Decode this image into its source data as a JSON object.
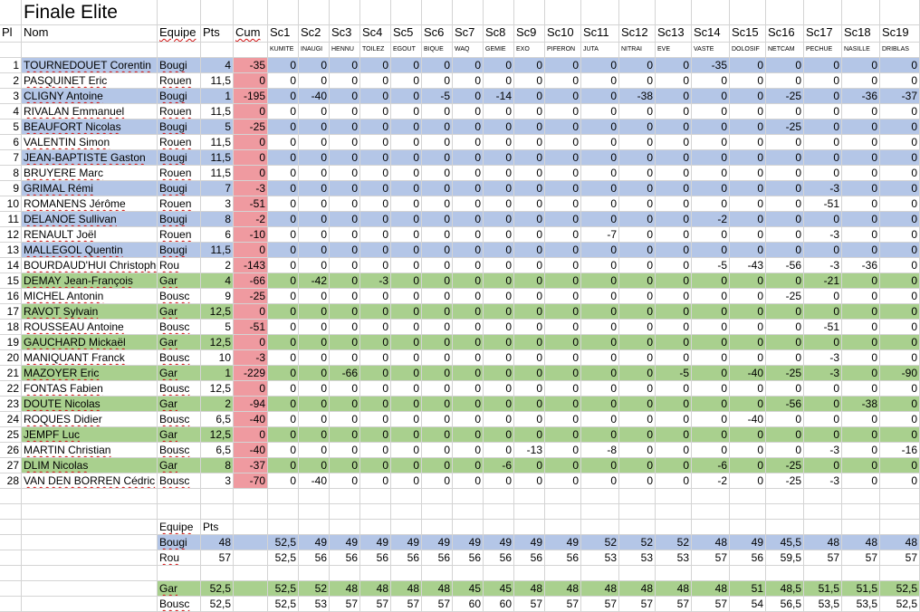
{
  "sheet": {
    "title": "Finale Elite",
    "headers": {
      "pl": "Pl",
      "nom": "Nom",
      "equipe": "Equipe",
      "pts": "Pts",
      "cum": "Cum",
      "sc": [
        "Sc1",
        "Sc2",
        "Sc3",
        "Sc4",
        "Sc5",
        "Sc6",
        "Sc7",
        "Sc8",
        "Sc9",
        "Sc10",
        "Sc11",
        "Sc12",
        "Sc13",
        "Sc14",
        "Sc15",
        "Sc16",
        "Sc17",
        "Sc18",
        "Sc19"
      ]
    },
    "subheaders": [
      "KUMITE",
      "INAUGI",
      "HENNU",
      "TOILEZ",
      "EGOUT",
      "BIQUE",
      "WAQ",
      "GEMIE",
      "EXO",
      "PIFERON",
      "JUTA",
      "NITRAI",
      "EVE",
      "VASTE",
      "DOLOSIF",
      "NETCAM",
      "PECHUE",
      "NASILLE",
      "DRIBLAS"
    ],
    "colors": {
      "blue": "#b4c6e7",
      "green": "#a9d08e",
      "red": "#ef9aa0"
    },
    "rows": [
      {
        "pl": "1",
        "nom": "TOURNEDOUET Corentin",
        "equipe": "Bougi",
        "pts": "4",
        "cum": "-35",
        "sc": [
          "0",
          "0",
          "0",
          "0",
          "0",
          "0",
          "0",
          "0",
          "0",
          "0",
          "0",
          "0",
          "0",
          "-35",
          "0",
          "0",
          "0",
          "0",
          "0"
        ]
      },
      {
        "pl": "2",
        "nom": "PASQUINET Eric",
        "equipe": "Rouen",
        "pts": "11,5",
        "cum": "0",
        "sc": [
          "0",
          "0",
          "0",
          "0",
          "0",
          "0",
          "0",
          "0",
          "0",
          "0",
          "0",
          "0",
          "0",
          "0",
          "0",
          "0",
          "0",
          "0",
          "0"
        ]
      },
      {
        "pl": "3",
        "nom": "CLIGNY Antoine",
        "equipe": "Bougi",
        "pts": "1",
        "cum": "-195",
        "sc": [
          "0",
          "-40",
          "0",
          "0",
          "0",
          "-5",
          "0",
          "-14",
          "0",
          "0",
          "0",
          "-38",
          "0",
          "0",
          "0",
          "-25",
          "0",
          "-36",
          "-37"
        ]
      },
      {
        "pl": "4",
        "nom": "RIVALAN Emmanuel",
        "equipe": "Rouen",
        "pts": "11,5",
        "cum": "0",
        "sc": [
          "0",
          "0",
          "0",
          "0",
          "0",
          "0",
          "0",
          "0",
          "0",
          "0",
          "0",
          "0",
          "0",
          "0",
          "0",
          "0",
          "0",
          "0",
          "0"
        ]
      },
      {
        "pl": "5",
        "nom": "BEAUFORT Nicolas",
        "equipe": "Bougi",
        "pts": "5",
        "cum": "-25",
        "sc": [
          "0",
          "0",
          "0",
          "0",
          "0",
          "0",
          "0",
          "0",
          "0",
          "0",
          "0",
          "0",
          "0",
          "0",
          "0",
          "-25",
          "0",
          "0",
          "0"
        ]
      },
      {
        "pl": "6",
        "nom": "VALENTIN Simon",
        "equipe": "Rouen",
        "pts": "11,5",
        "cum": "0",
        "sc": [
          "0",
          "0",
          "0",
          "0",
          "0",
          "0",
          "0",
          "0",
          "0",
          "0",
          "0",
          "0",
          "0",
          "0",
          "0",
          "0",
          "0",
          "0",
          "0"
        ]
      },
      {
        "pl": "7",
        "nom": "JEAN-BAPTISTE Gaston",
        "equipe": "Bougi",
        "pts": "11,5",
        "cum": "0",
        "sc": [
          "0",
          "0",
          "0",
          "0",
          "0",
          "0",
          "0",
          "0",
          "0",
          "0",
          "0",
          "0",
          "0",
          "0",
          "0",
          "0",
          "0",
          "0",
          "0"
        ]
      },
      {
        "pl": "8",
        "nom": "BRUYERE Marc",
        "equipe": "Rouen",
        "pts": "11,5",
        "cum": "0",
        "sc": [
          "0",
          "0",
          "0",
          "0",
          "0",
          "0",
          "0",
          "0",
          "0",
          "0",
          "0",
          "0",
          "0",
          "0",
          "0",
          "0",
          "0",
          "0",
          "0"
        ]
      },
      {
        "pl": "9",
        "nom": "GRIMAL Rémi",
        "equipe": "Bougi",
        "pts": "7",
        "cum": "-3",
        "sc": [
          "0",
          "0",
          "0",
          "0",
          "0",
          "0",
          "0",
          "0",
          "0",
          "0",
          "0",
          "0",
          "0",
          "0",
          "0",
          "0",
          "-3",
          "0",
          "0"
        ]
      },
      {
        "pl": "10",
        "nom": "ROMANENS Jérôme",
        "equipe": "Rouen",
        "pts": "3",
        "cum": "-51",
        "sc": [
          "0",
          "0",
          "0",
          "0",
          "0",
          "0",
          "0",
          "0",
          "0",
          "0",
          "0",
          "0",
          "0",
          "0",
          "0",
          "0",
          "-51",
          "0",
          "0"
        ]
      },
      {
        "pl": "11",
        "nom": "DELANOE Sullivan",
        "equipe": "Bougi",
        "pts": "8",
        "cum": "-2",
        "sc": [
          "0",
          "0",
          "0",
          "0",
          "0",
          "0",
          "0",
          "0",
          "0",
          "0",
          "0",
          "0",
          "0",
          "-2",
          "0",
          "0",
          "0",
          "0",
          "0"
        ]
      },
      {
        "pl": "12",
        "nom": "RENAULT Joël",
        "equipe": "Rouen",
        "pts": "6",
        "cum": "-10",
        "sc": [
          "0",
          "0",
          "0",
          "0",
          "0",
          "0",
          "0",
          "0",
          "0",
          "0",
          "-7",
          "0",
          "0",
          "0",
          "0",
          "0",
          "-3",
          "0",
          "0"
        ]
      },
      {
        "pl": "13",
        "nom": "MALLEGOL Quentin",
        "equipe": "Bougi",
        "pts": "11,5",
        "cum": "0",
        "sc": [
          "0",
          "0",
          "0",
          "0",
          "0",
          "0",
          "0",
          "0",
          "0",
          "0",
          "0",
          "0",
          "0",
          "0",
          "0",
          "0",
          "0",
          "0",
          "0"
        ]
      },
      {
        "pl": "14",
        "nom": "BOURDAUD'HUI Christophe",
        "equipe": "Rou",
        "pts": "2",
        "cum": "-143",
        "sc": [
          "0",
          "0",
          "0",
          "0",
          "0",
          "0",
          "0",
          "0",
          "0",
          "0",
          "0",
          "0",
          "0",
          "-5",
          "-43",
          "-56",
          "-3",
          "-36",
          "0"
        ]
      },
      {
        "pl": "15",
        "nom": "DEMAY Jean-François",
        "equipe": "Gar",
        "pts": "4",
        "cum": "-66",
        "sc": [
          "0",
          "-42",
          "0",
          "-3",
          "0",
          "0",
          "0",
          "0",
          "0",
          "0",
          "0",
          "0",
          "0",
          "0",
          "0",
          "0",
          "-21",
          "0",
          "0"
        ]
      },
      {
        "pl": "16",
        "nom": "MICHEL Antonin",
        "equipe": "Bousc",
        "pts": "9",
        "cum": "-25",
        "sc": [
          "0",
          "0",
          "0",
          "0",
          "0",
          "0",
          "0",
          "0",
          "0",
          "0",
          "0",
          "0",
          "0",
          "0",
          "0",
          "-25",
          "0",
          "0",
          "0"
        ]
      },
      {
        "pl": "17",
        "nom": "RAVOT Sylvain",
        "equipe": "Gar",
        "pts": "12,5",
        "cum": "0",
        "sc": [
          "0",
          "0",
          "0",
          "0",
          "0",
          "0",
          "0",
          "0",
          "0",
          "0",
          "0",
          "0",
          "0",
          "0",
          "0",
          "0",
          "0",
          "0",
          "0"
        ]
      },
      {
        "pl": "18",
        "nom": "ROUSSEAU Antoine",
        "equipe": "Bousc",
        "pts": "5",
        "cum": "-51",
        "sc": [
          "0",
          "0",
          "0",
          "0",
          "0",
          "0",
          "0",
          "0",
          "0",
          "0",
          "0",
          "0",
          "0",
          "0",
          "0",
          "0",
          "-51",
          "0",
          "0"
        ]
      },
      {
        "pl": "19",
        "nom": "GAUCHARD Mickaël",
        "equipe": "Gar",
        "pts": "12,5",
        "cum": "0",
        "sc": [
          "0",
          "0",
          "0",
          "0",
          "0",
          "0",
          "0",
          "0",
          "0",
          "0",
          "0",
          "0",
          "0",
          "0",
          "0",
          "0",
          "0",
          "0",
          "0"
        ]
      },
      {
        "pl": "20",
        "nom": "MANIQUANT Franck",
        "equipe": "Bousc",
        "pts": "10",
        "cum": "-3",
        "sc": [
          "0",
          "0",
          "0",
          "0",
          "0",
          "0",
          "0",
          "0",
          "0",
          "0",
          "0",
          "0",
          "0",
          "0",
          "0",
          "0",
          "-3",
          "0",
          "0"
        ]
      },
      {
        "pl": "21",
        "nom": "MAZOYER Eric",
        "equipe": "Gar",
        "pts": "1",
        "cum": "-229",
        "sc": [
          "0",
          "0",
          "-66",
          "0",
          "0",
          "0",
          "0",
          "0",
          "0",
          "0",
          "0",
          "0",
          "-5",
          "0",
          "-40",
          "-25",
          "-3",
          "0",
          "-90"
        ]
      },
      {
        "pl": "22",
        "nom": "FONTAS Fabien",
        "equipe": "Bousc",
        "pts": "12,5",
        "cum": "0",
        "sc": [
          "0",
          "0",
          "0",
          "0",
          "0",
          "0",
          "0",
          "0",
          "0",
          "0",
          "0",
          "0",
          "0",
          "0",
          "0",
          "0",
          "0",
          "0",
          "0"
        ]
      },
      {
        "pl": "23",
        "nom": "DOUTE Nicolas",
        "equipe": "Gar",
        "pts": "2",
        "cum": "-94",
        "sc": [
          "0",
          "0",
          "0",
          "0",
          "0",
          "0",
          "0",
          "0",
          "0",
          "0",
          "0",
          "0",
          "0",
          "0",
          "0",
          "-56",
          "0",
          "-38",
          "0"
        ]
      },
      {
        "pl": "24",
        "nom": "ROQUES Didier",
        "equipe": "Bousc",
        "pts": "6,5",
        "cum": "-40",
        "sc": [
          "0",
          "0",
          "0",
          "0",
          "0",
          "0",
          "0",
          "0",
          "0",
          "0",
          "0",
          "0",
          "0",
          "0",
          "-40",
          "0",
          "0",
          "0",
          "0"
        ]
      },
      {
        "pl": "25",
        "nom": "JEMPF Luc",
        "equipe": "Gar",
        "pts": "12,5",
        "cum": "0",
        "sc": [
          "0",
          "0",
          "0",
          "0",
          "0",
          "0",
          "0",
          "0",
          "0",
          "0",
          "0",
          "0",
          "0",
          "0",
          "0",
          "0",
          "0",
          "0",
          "0"
        ]
      },
      {
        "pl": "26",
        "nom": "MARTIN Christian",
        "equipe": "Bousc",
        "pts": "6,5",
        "cum": "-40",
        "sc": [
          "0",
          "0",
          "0",
          "0",
          "0",
          "0",
          "0",
          "0",
          "-13",
          "0",
          "-8",
          "0",
          "0",
          "0",
          "0",
          "0",
          "-3",
          "0",
          "-16"
        ]
      },
      {
        "pl": "27",
        "nom": "DLIM Nicolas",
        "equipe": "Gar",
        "pts": "8",
        "cum": "-37",
        "sc": [
          "0",
          "0",
          "0",
          "0",
          "0",
          "0",
          "0",
          "-6",
          "0",
          "0",
          "0",
          "0",
          "0",
          "-6",
          "0",
          "-25",
          "0",
          "0",
          "0"
        ]
      },
      {
        "pl": "28",
        "nom": "VAN DEN BORREN Cédric",
        "equipe": "Bousc",
        "pts": "3",
        "cum": "-70",
        "sc": [
          "0",
          "-40",
          "0",
          "0",
          "0",
          "0",
          "0",
          "0",
          "0",
          "0",
          "0",
          "0",
          "0",
          "-2",
          "0",
          "-25",
          "-3",
          "0",
          "0"
        ]
      }
    ],
    "summary_header": {
      "equipe": "Equipe",
      "pts": "Pts"
    },
    "summary": [
      {
        "equipe": "Bougi",
        "pts": "48",
        "sc": [
          "52,5",
          "49",
          "49",
          "49",
          "49",
          "49",
          "49",
          "49",
          "49",
          "49",
          "52",
          "52",
          "52",
          "48",
          "49",
          "45,5",
          "48",
          "48",
          "48"
        ]
      },
      {
        "equipe": "Rou",
        "pts": "57",
        "sc": [
          "52,5",
          "56",
          "56",
          "56",
          "56",
          "56",
          "56",
          "56",
          "56",
          "56",
          "53",
          "53",
          "53",
          "57",
          "56",
          "59,5",
          "57",
          "57",
          "57"
        ]
      },
      {
        "equipe": "Gar",
        "pts": "52,5",
        "sc": [
          "52,5",
          "52",
          "48",
          "48",
          "48",
          "48",
          "45",
          "45",
          "48",
          "48",
          "48",
          "48",
          "48",
          "48",
          "51",
          "48,5",
          "51,5",
          "51,5",
          "52,5"
        ]
      },
      {
        "equipe": "Bousc",
        "pts": "52,5",
        "sc": [
          "52,5",
          "53",
          "57",
          "57",
          "57",
          "57",
          "60",
          "60",
          "57",
          "57",
          "57",
          "57",
          "57",
          "57",
          "54",
          "56,5",
          "53,5",
          "53,5",
          "52,5"
        ]
      }
    ]
  }
}
